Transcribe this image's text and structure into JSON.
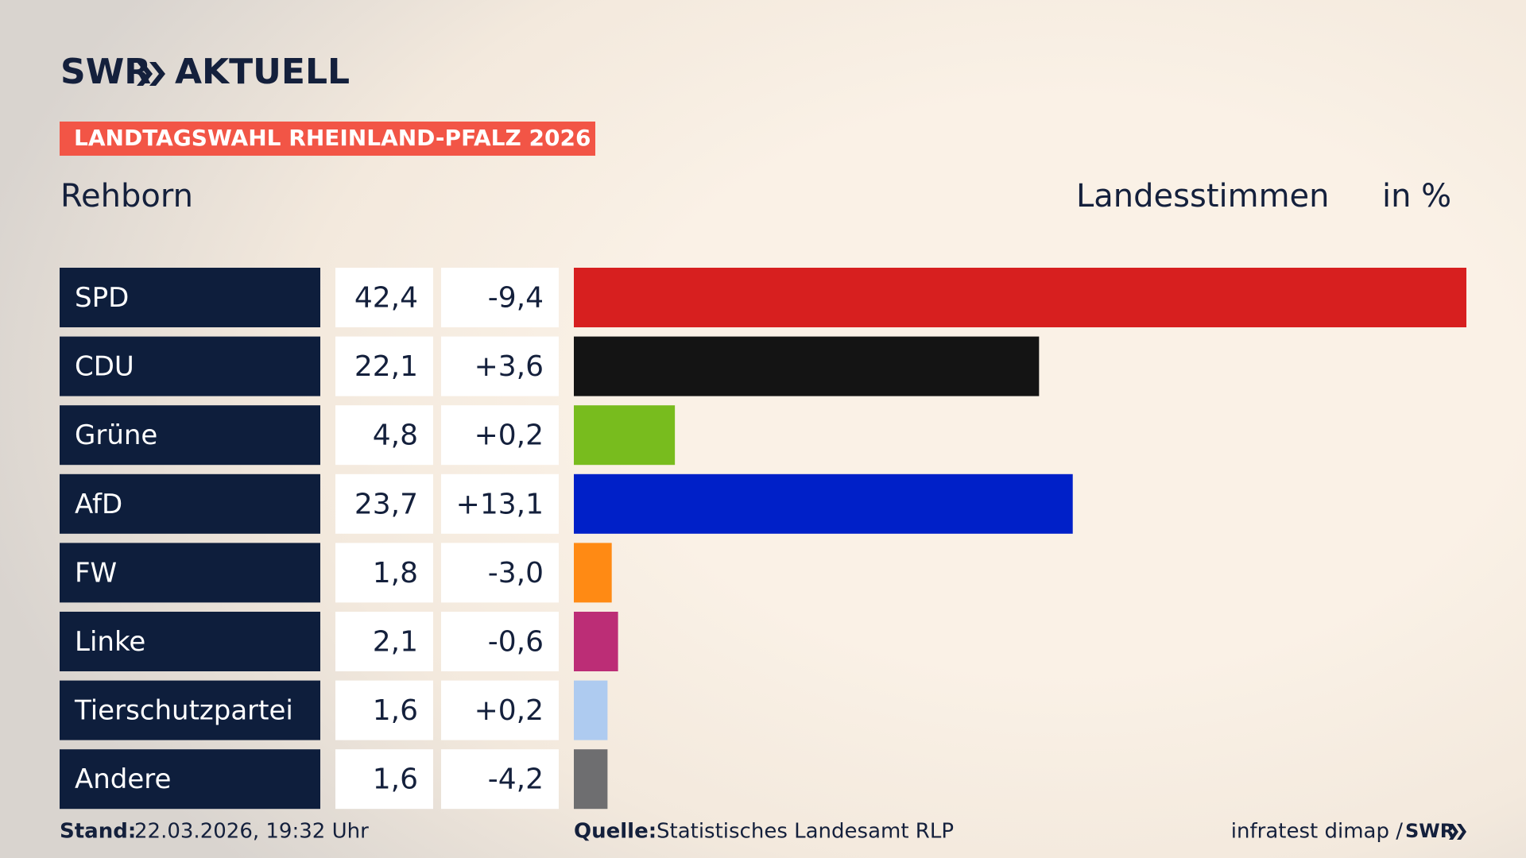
{
  "brand": {
    "name": "SWR",
    "product": "AKTUELL"
  },
  "badge": "LANDTAGSWAHL RHEINLAND-PFALZ 2026",
  "chart_data": {
    "type": "bar",
    "title": "Rehborn",
    "subtitle": "Landesstimmen",
    "unit": "in %",
    "categories": [
      "SPD",
      "CDU",
      "Grüne",
      "AfD",
      "FW",
      "Linke",
      "Tierschutzpartei",
      "Andere"
    ],
    "values": [
      42.4,
      22.1,
      4.8,
      23.7,
      1.8,
      2.1,
      1.6,
      1.6
    ],
    "value_labels": [
      "42,4",
      "22,1",
      "4,8",
      "23,7",
      "1,8",
      "2,1",
      "1,6",
      "1,6"
    ],
    "changes": [
      "-9,4",
      "+3,6",
      "+0,2",
      "+13,1",
      "-3,0",
      "-0,6",
      "+0,2",
      "-4,2"
    ],
    "colors": [
      "#d71f1f",
      "#141414",
      "#78bc1e",
      "#0020c8",
      "#ff8a14",
      "#bc2d76",
      "#aecbf0",
      "#6e6e70"
    ]
  },
  "footer": {
    "stand_label": "Stand:",
    "stand": "22.03.2026, 19:32 Uhr",
    "source_label": "Quelle:",
    "source": "Statistisches Landesamt RLP",
    "credit": "infratest dimap /",
    "credit_brand": "SWR"
  }
}
